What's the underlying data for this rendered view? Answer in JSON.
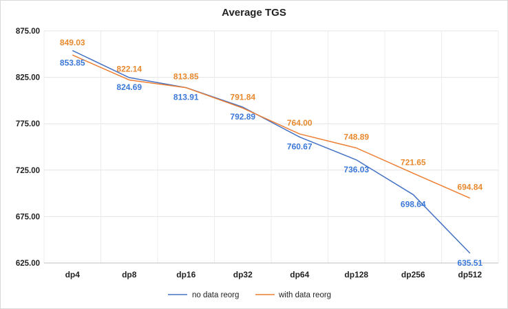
{
  "chart_data": {
    "type": "line",
    "title": "Average TGS",
    "xlabel": "",
    "ylabel": "",
    "categories": [
      "dp4",
      "dp8",
      "dp16",
      "dp32",
      "dp64",
      "dp128",
      "dp256",
      "dp512"
    ],
    "y_ticks": [
      "625.00",
      "675.00",
      "725.00",
      "775.00",
      "825.00",
      "875.00"
    ],
    "ylim": [
      625,
      875
    ],
    "grid": true,
    "legend_position": "bottom",
    "series": [
      {
        "name": "no data reorg",
        "color": "#4472c4",
        "label_color": "#3b78d8",
        "values": [
          853.85,
          824.69,
          813.91,
          792.89,
          760.67,
          736.03,
          698.64,
          635.51
        ],
        "labels": [
          "853.85",
          "824.69",
          "813.91",
          "792.89",
          "760.67",
          "736.03",
          "698.64",
          "635.51"
        ]
      },
      {
        "name": "with data reorg",
        "color": "#ed7d31",
        "label_color": "#e8892e",
        "values": [
          849.03,
          822.14,
          813.85,
          791.84,
          764.0,
          748.89,
          721.65,
          694.84
        ],
        "labels": [
          "849.03",
          "822.14",
          "813.85",
          "791.84",
          "764.00",
          "748.89",
          "721.65",
          "694.84"
        ]
      }
    ]
  }
}
